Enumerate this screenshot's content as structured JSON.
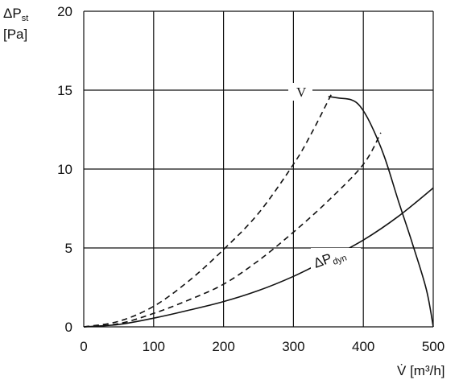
{
  "chart_data": {
    "type": "line",
    "xlim": [
      0,
      500
    ],
    "ylim": [
      0,
      20
    ],
    "grid": true,
    "x_ticks": [
      "0",
      "100",
      "200",
      "300",
      "400",
      "500"
    ],
    "y_ticks": [
      "0",
      "5",
      "10",
      "15",
      "20"
    ],
    "ylabel": {
      "main": "ΔP",
      "sub": "st",
      "unit": "[Pa]"
    },
    "xlabel": {
      "main": "V̇",
      "unit": " [m³/h]"
    },
    "series": [
      {
        "name": "V",
        "style": "solid",
        "points": [
          [
            350,
            14.6
          ],
          [
            365,
            14.5
          ],
          [
            382,
            14.4
          ],
          [
            395,
            14.0
          ],
          [
            410,
            12.9
          ],
          [
            430,
            10.8
          ],
          [
            450,
            8.0
          ],
          [
            470,
            5.3
          ],
          [
            490,
            2.4
          ],
          [
            500,
            0.0
          ]
        ]
      },
      {
        "name": "ΔP dyn",
        "style": "solid",
        "points": [
          [
            0,
            0
          ],
          [
            50,
            0.15
          ],
          [
            100,
            0.55
          ],
          [
            150,
            1.05
          ],
          [
            200,
            1.6
          ],
          [
            250,
            2.3
          ],
          [
            300,
            3.2
          ],
          [
            350,
            4.3
          ],
          [
            400,
            5.5
          ],
          [
            450,
            7.0
          ],
          [
            500,
            8.8
          ]
        ]
      },
      {
        "style": "dashed",
        "points": [
          [
            0,
            0
          ],
          [
            50,
            0.2
          ],
          [
            100,
            0.85
          ],
          [
            150,
            1.7
          ],
          [
            200,
            2.7
          ],
          [
            250,
            4.2
          ],
          [
            300,
            6.0
          ],
          [
            350,
            8.0
          ],
          [
            400,
            10.3
          ],
          [
            425,
            12.3
          ]
        ]
      },
      {
        "style": "dashed",
        "points": [
          [
            0,
            0
          ],
          [
            50,
            0.35
          ],
          [
            100,
            1.3
          ],
          [
            150,
            2.9
          ],
          [
            200,
            4.9
          ],
          [
            250,
            7.2
          ],
          [
            300,
            10.3
          ],
          [
            325,
            12.2
          ],
          [
            355,
            14.8
          ]
        ]
      }
    ],
    "labels": {
      "v": "V",
      "dyn_main": "ΔP",
      "dyn_sub": "dyn"
    }
  }
}
